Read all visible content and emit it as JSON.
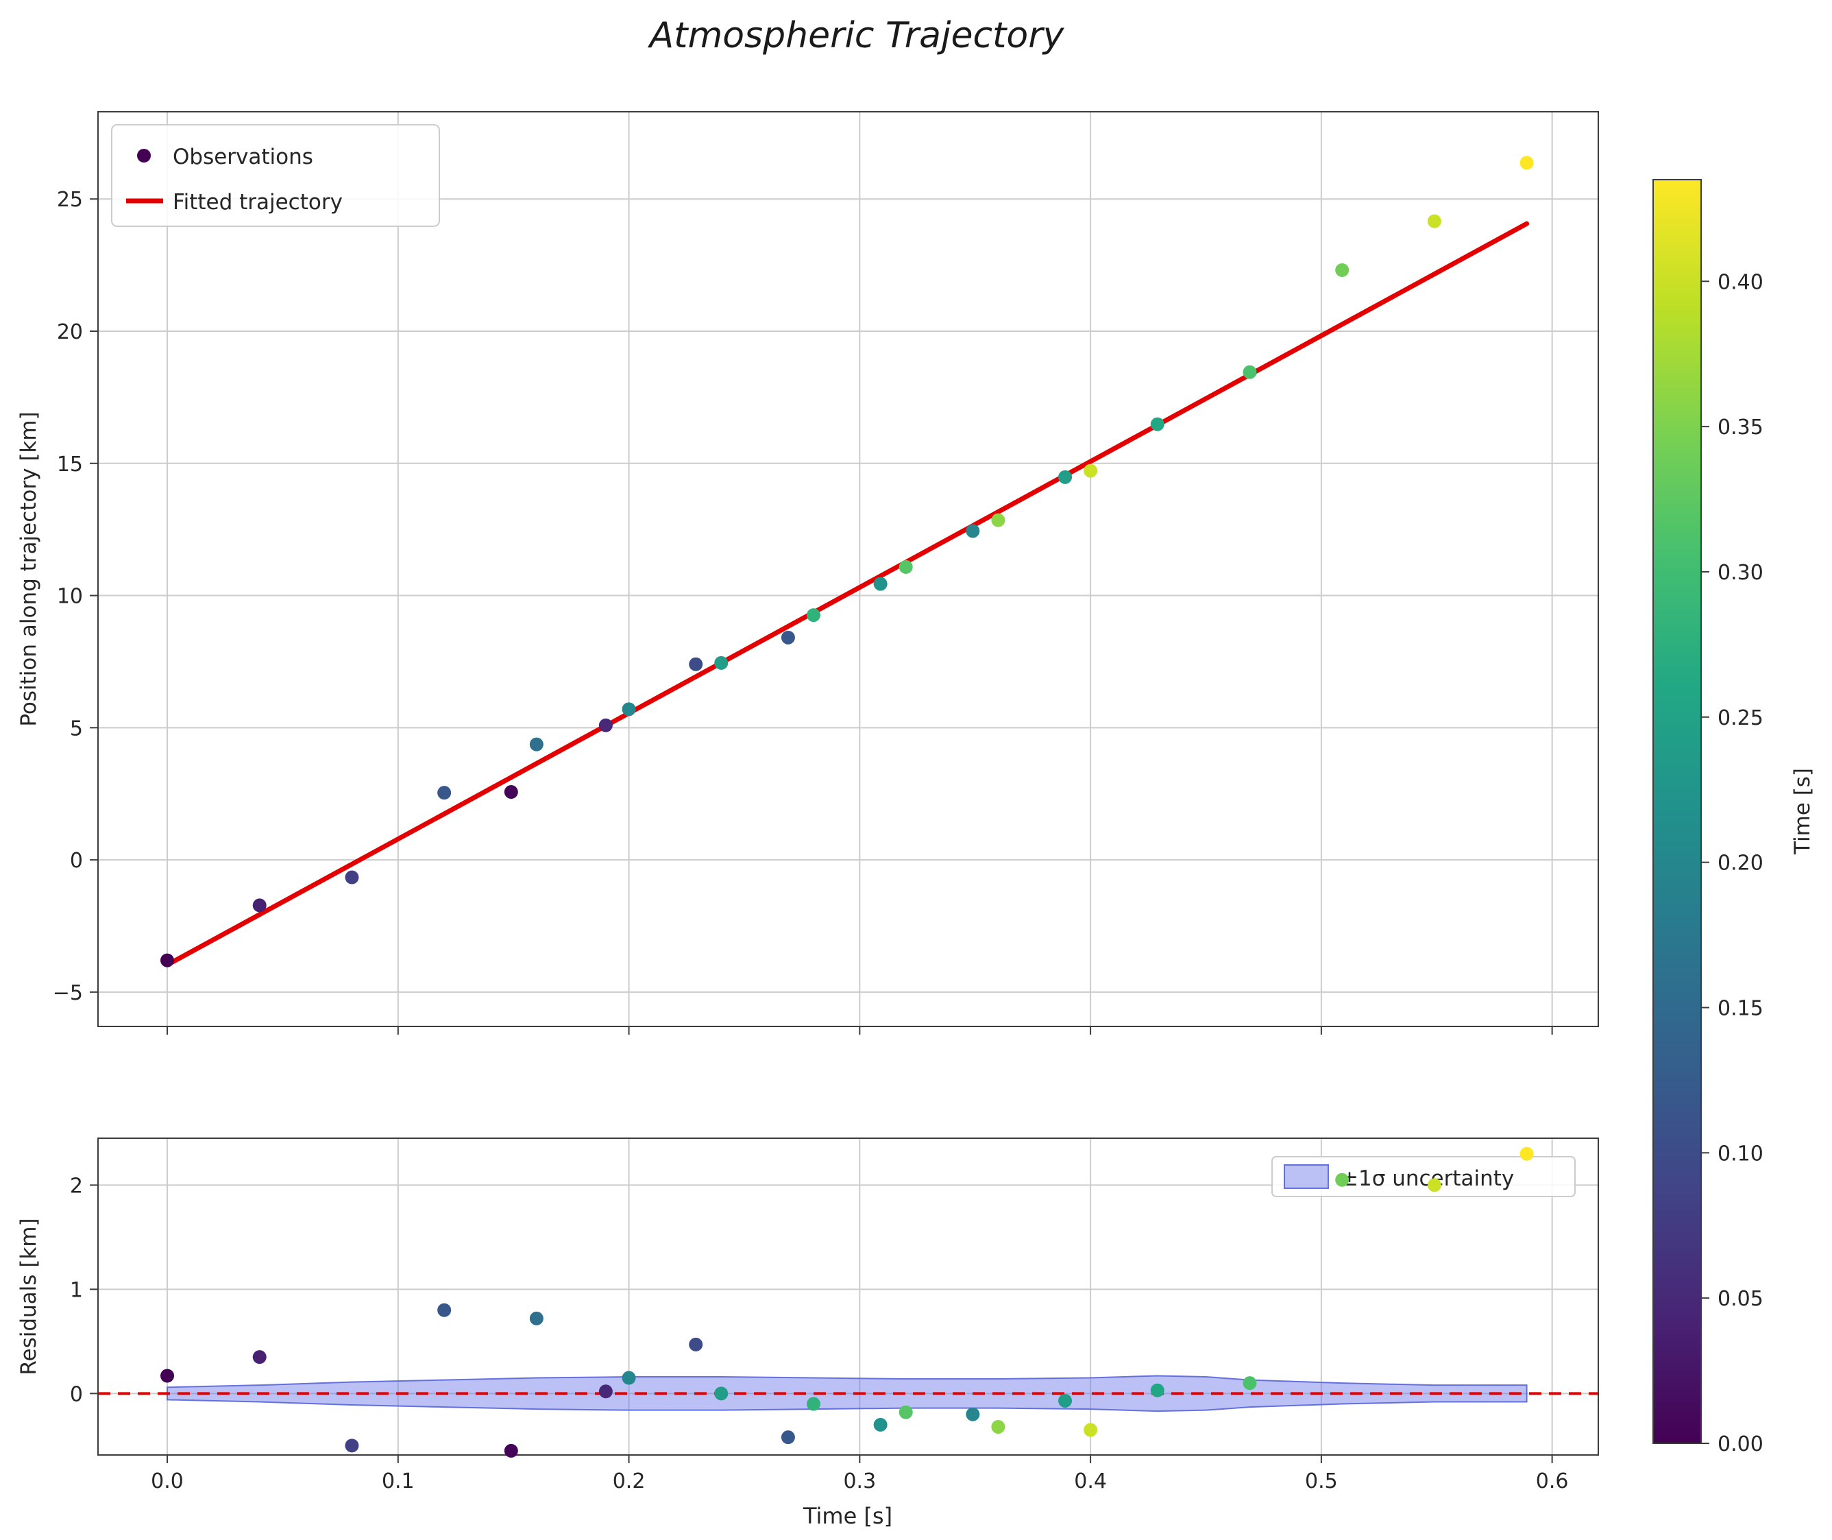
{
  "title": "Atmospheric Trajectory",
  "colors": {
    "fit_line": "#e50000",
    "grid": "#cccccc",
    "spine": "#3c3c3c",
    "text": "#262626",
    "band_fill": "rgba(105,118,232,0.45)",
    "band_edge": "rgba(88,100,220,0.9)",
    "legend_marker": "#440154",
    "background": "#ffffff"
  },
  "colormap": {
    "name": "viridis",
    "anchors": [
      [
        0,
        "#440154"
      ],
      [
        0.1,
        "#482475"
      ],
      [
        0.2,
        "#414487"
      ],
      [
        0.3,
        "#355f8d"
      ],
      [
        0.4,
        "#2a788e"
      ],
      [
        0.5,
        "#21918c"
      ],
      [
        0.6,
        "#22a884"
      ],
      [
        0.7,
        "#44bf70"
      ],
      [
        0.8,
        "#7ad151"
      ],
      [
        0.9,
        "#bddf26"
      ],
      [
        1,
        "#fde725"
      ]
    ]
  },
  "chart_data": {
    "type": "scatter",
    "title": "Atmospheric Trajectory",
    "xticks": [
      {
        "v": 0.0,
        "label": "0.0"
      },
      {
        "v": 0.1,
        "label": "0.1"
      },
      {
        "v": 0.2,
        "label": "0.2"
      },
      {
        "v": 0.3,
        "label": "0.3"
      },
      {
        "v": 0.4,
        "label": "0.4"
      },
      {
        "v": 0.5,
        "label": "0.5"
      },
      {
        "v": 0.6,
        "label": "0.6"
      }
    ],
    "main_panel": {
      "ylabel": "Position along trajectory [km]",
      "xlim": [
        -0.03,
        0.62
      ],
      "ylim": [
        -6.3,
        28.3
      ],
      "grid": true,
      "yticks": [
        {
          "v": -5,
          "label": "−5"
        },
        {
          "v": 0,
          "label": "0"
        },
        {
          "v": 5,
          "label": "5"
        },
        {
          "v": 10,
          "label": "10"
        },
        {
          "v": 15,
          "label": "15"
        },
        {
          "v": 20,
          "label": "20"
        },
        {
          "v": 25,
          "label": "25"
        }
      ],
      "legend": {
        "observations": "Observations",
        "fit": "Fitted trajectory",
        "position": "upper left"
      },
      "fit_line": {
        "slope": 47.6,
        "intercept": -3.97,
        "x_start": 0.0,
        "x_end": 0.589
      }
    },
    "residual_panel": {
      "ylabel": "Residuals [km]",
      "xlabel": "Time [s]",
      "ylim": [
        -0.59,
        2.45
      ],
      "grid": true,
      "zero_line": 0,
      "yticks": [
        {
          "v": 0,
          "label": "0"
        },
        {
          "v": 1,
          "label": "1"
        },
        {
          "v": 2,
          "label": "2"
        }
      ],
      "legend": {
        "band": "±1σ uncertainty",
        "position": "upper right"
      },
      "band": {
        "x": [
          0.0,
          0.04,
          0.08,
          0.12,
          0.16,
          0.2,
          0.24,
          0.28,
          0.32,
          0.36,
          0.4,
          0.429,
          0.45,
          0.469,
          0.509,
          0.549,
          0.589
        ],
        "halfwidth": [
          0.06,
          0.08,
          0.11,
          0.13,
          0.15,
          0.16,
          0.16,
          0.15,
          0.14,
          0.14,
          0.15,
          0.17,
          0.16,
          0.13,
          0.1,
          0.08,
          0.08
        ]
      }
    },
    "colorbar": {
      "label": "Time [s]",
      "range": [
        0,
        0.435
      ],
      "ticks": [
        {
          "v": 0.0,
          "label": "0.00"
        },
        {
          "v": 0.05,
          "label": "0.05"
        },
        {
          "v": 0.1,
          "label": "0.10"
        },
        {
          "v": 0.15,
          "label": "0.15"
        },
        {
          "v": 0.2,
          "label": "0.20"
        },
        {
          "v": 0.25,
          "label": "0.25"
        },
        {
          "v": 0.3,
          "label": "0.30"
        },
        {
          "v": 0.35,
          "label": "0.35"
        },
        {
          "v": 0.4,
          "label": "0.40"
        }
      ]
    },
    "observations": [
      {
        "t": 0.0,
        "y": -3.8,
        "r": 0.17,
        "c": 0.0
      },
      {
        "t": 0.04,
        "y": -1.72,
        "r": 0.35,
        "c": 0.04
      },
      {
        "t": 0.08,
        "y": -0.66,
        "r": -0.5,
        "c": 0.08
      },
      {
        "t": 0.12,
        "y": 2.54,
        "r": 0.8,
        "c": 0.12
      },
      {
        "t": 0.149,
        "y": 2.57,
        "r": -0.55,
        "c": 0.005
      },
      {
        "t": 0.16,
        "y": 4.37,
        "r": 0.72,
        "c": 0.16
      },
      {
        "t": 0.19,
        "y": 5.09,
        "r": 0.02,
        "c": 0.05
      },
      {
        "t": 0.2,
        "y": 5.7,
        "r": 0.15,
        "c": 0.2
      },
      {
        "t": 0.229,
        "y": 7.4,
        "r": 0.47,
        "c": 0.1
      },
      {
        "t": 0.24,
        "y": 7.45,
        "r": 0.0,
        "c": 0.24
      },
      {
        "t": 0.269,
        "y": 8.41,
        "r": -0.42,
        "c": 0.12
      },
      {
        "t": 0.28,
        "y": 9.26,
        "r": -0.1,
        "c": 0.28
      },
      {
        "t": 0.309,
        "y": 10.44,
        "r": -0.3,
        "c": 0.22
      },
      {
        "t": 0.32,
        "y": 11.08,
        "r": -0.18,
        "c": 0.32
      },
      {
        "t": 0.349,
        "y": 12.44,
        "r": -0.2,
        "c": 0.2
      },
      {
        "t": 0.36,
        "y": 12.85,
        "r": -0.32,
        "c": 0.36
      },
      {
        "t": 0.389,
        "y": 14.48,
        "r": -0.07,
        "c": 0.24
      },
      {
        "t": 0.4,
        "y": 14.72,
        "r": -0.35,
        "c": 0.4
      },
      {
        "t": 0.429,
        "y": 16.48,
        "r": 0.03,
        "c": 0.26
      },
      {
        "t": 0.469,
        "y": 18.45,
        "r": 0.1,
        "c": 0.31
      },
      {
        "t": 0.509,
        "y": 22.31,
        "r": 2.05,
        "c": 0.34
      },
      {
        "t": 0.549,
        "y": 24.16,
        "r": 2.0,
        "c": 0.4
      },
      {
        "t": 0.589,
        "y": 26.37,
        "r": 2.3,
        "c": 0.435
      }
    ]
  }
}
